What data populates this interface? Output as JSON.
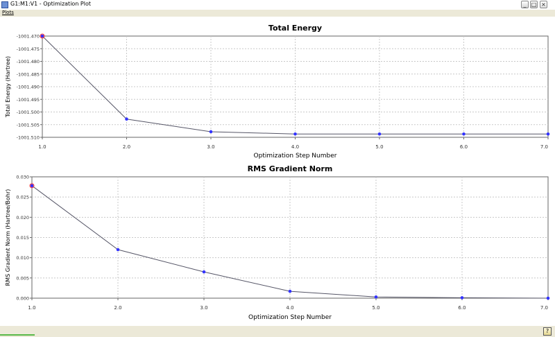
{
  "window": {
    "title": "G1:M1:V1 - Optimization Plot",
    "icon": "gaussview-icon"
  },
  "menu": {
    "items": [
      {
        "label": "Plots"
      }
    ]
  },
  "window_buttons": {
    "minimize": "_",
    "maximize": "□",
    "close": "×"
  },
  "help_button": {
    "label": "?"
  },
  "colors": {
    "line": "#555566",
    "point": "#3333ff",
    "highlight": "#ff3333",
    "grid": "#c8c8c8"
  },
  "chart_data": [
    {
      "type": "line",
      "title": "Total Energy",
      "xlabel": "Optimization Step Number",
      "ylabel": "Total Energy (Hartree)",
      "x": [
        1,
        2,
        3,
        4,
        5,
        6,
        7
      ],
      "values": [
        -1001.47,
        -1001.5028,
        -1001.5078,
        -1001.5087,
        -1001.5087,
        -1001.5087,
        -1001.5087
      ],
      "xlim": [
        1,
        7
      ],
      "ylim": [
        -1001.51,
        -1001.47
      ],
      "xticks": [
        "1.0",
        "2.0",
        "3.0",
        "4.0",
        "5.0",
        "6.0",
        "7.0"
      ],
      "yticks": [
        "-1001.470",
        "-1001.475",
        "-1001.480",
        "-1001.485",
        "-1001.490",
        "-1001.495",
        "-1001.500",
        "-1001.505",
        "-1001.510"
      ],
      "highlighted_point": 0,
      "grid": true
    },
    {
      "type": "line",
      "title": "RMS Gradient Norm",
      "xlabel": "Optimization Step Number",
      "ylabel": "RMS Gradient Norm (Hartree/Bohr)",
      "x": [
        1,
        2,
        3,
        4,
        5,
        6,
        7
      ],
      "values": [
        0.0278,
        0.012,
        0.0065,
        0.0017,
        0.0003,
        0.0001,
        0.0
      ],
      "xlim": [
        1,
        7
      ],
      "ylim": [
        0,
        0.03
      ],
      "xticks": [
        "1.0",
        "2.0",
        "3.0",
        "4.0",
        "5.0",
        "6.0",
        "7.0"
      ],
      "yticks": [
        "0.000",
        "0.005",
        "0.010",
        "0.015",
        "0.020",
        "0.025",
        "0.030"
      ],
      "highlighted_point": 0,
      "grid": true
    }
  ]
}
